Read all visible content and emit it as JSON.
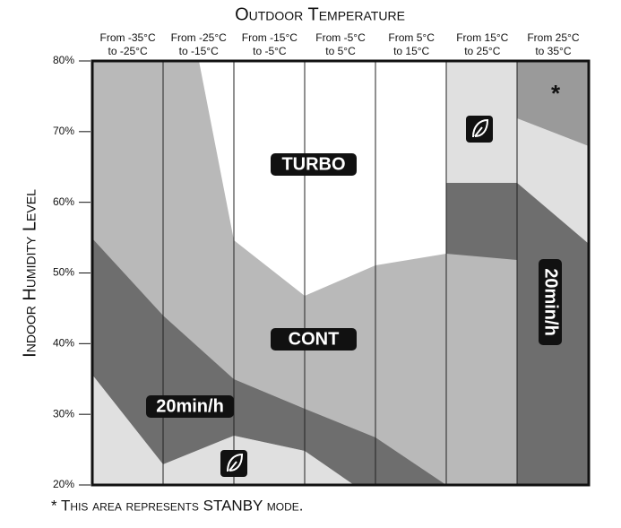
{
  "title": "Outdoor Temperature",
  "y_axis_label": "Indoor Humidity Level",
  "columns": [
    [
      "From -35°C",
      "to -25°C"
    ],
    [
      "From -25°C",
      "to -15°C"
    ],
    [
      "From -15°C",
      "to -5°C"
    ],
    [
      "From -5°C",
      "to 5°C"
    ],
    [
      "From 5°C",
      "to 15°C"
    ],
    [
      "From 15°C",
      "to 25°C"
    ],
    [
      "From 25°C",
      "to 35°C"
    ]
  ],
  "y_ticks": [
    "80%",
    "70%",
    "60%",
    "50%",
    "40%",
    "30%",
    "20%"
  ],
  "regions": {
    "turbo": "TURBO",
    "cont": "CONT",
    "timed_left": "20min/h",
    "timed_right": "20min/h",
    "standby": "*"
  },
  "footnote": "* This area represents STANBY mode."
}
